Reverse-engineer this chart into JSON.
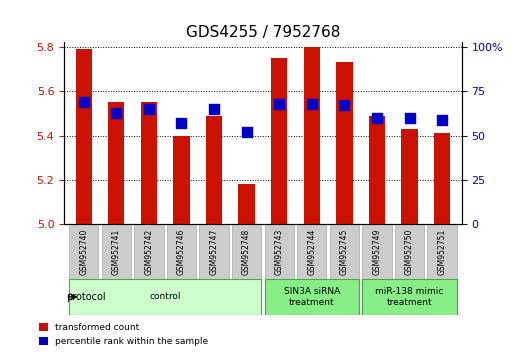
{
  "title": "GDS4255 / 7952768",
  "samples": [
    "GSM952740",
    "GSM952741",
    "GSM952742",
    "GSM952746",
    "GSM952747",
    "GSM952748",
    "GSM952743",
    "GSM952744",
    "GSM952745",
    "GSM952749",
    "GSM952750",
    "GSM952751"
  ],
  "transformed_count": [
    5.79,
    5.55,
    5.55,
    5.4,
    5.49,
    5.18,
    5.75,
    5.8,
    5.73,
    5.49,
    5.43,
    5.41
  ],
  "percentile_rank": [
    69,
    63,
    65,
    57,
    65,
    52,
    68,
    68,
    67,
    60,
    60,
    59
  ],
  "percentile_scale": 100,
  "ymin": 5.0,
  "ymax": 5.8,
  "yticks": [
    5.0,
    5.2,
    5.4,
    5.6,
    5.8
  ],
  "right_yticks": [
    0,
    25,
    50,
    75,
    100
  ],
  "right_ylabels": [
    "0",
    "25",
    "50",
    "75",
    "100%"
  ],
  "bar_color": "#cc1100",
  "dot_color": "#0000cc",
  "bar_width": 0.5,
  "dot_size": 50,
  "groups": [
    {
      "label": "control",
      "start": 0,
      "end": 6,
      "color": "#ccffcc",
      "edge_color": "#88cc88"
    },
    {
      "label": "SIN3A siRNA\ntreatment",
      "start": 6,
      "end": 9,
      "color": "#88ee88",
      "edge_color": "#44aa44"
    },
    {
      "label": "miR-138 mimic\ntreatment",
      "start": 9,
      "end": 12,
      "color": "#88ee88",
      "edge_color": "#44aa44"
    }
  ],
  "protocol_label": "protocol",
  "legend_items": [
    {
      "label": "transformed count",
      "color": "#cc1100"
    },
    {
      "label": "percentile rank within the sample",
      "color": "#0000cc"
    }
  ]
}
